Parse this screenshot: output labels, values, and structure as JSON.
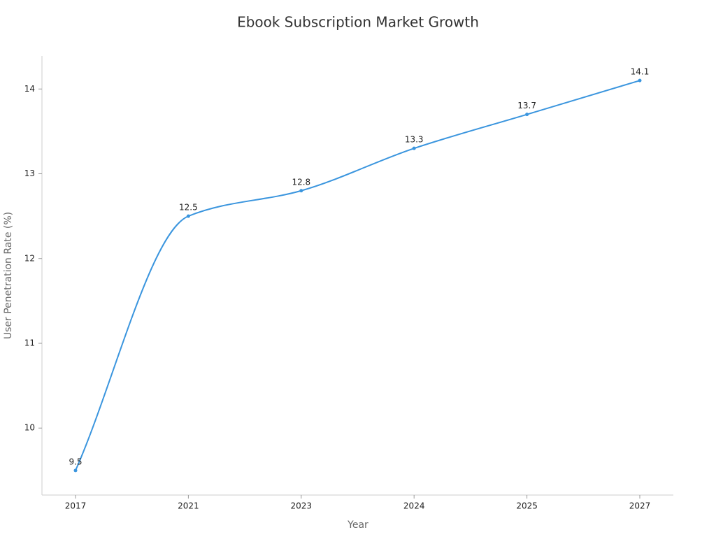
{
  "chart_data": {
    "type": "line",
    "title": "Ebook Subscription Market Growth",
    "x_label": "Year",
    "y_label": "User Penetration Rate (%)",
    "categories": [
      "2017",
      "2021",
      "2023",
      "2024",
      "2025",
      "2027"
    ],
    "series": [
      {
        "name": "User Penetration Rate",
        "color": "#3a95de",
        "values": [
          9.5,
          12.5,
          12.8,
          13.3,
          13.7,
          14.1
        ]
      }
    ],
    "ylim": [
      9.21,
      14.39
    ],
    "yticks": [
      10,
      11,
      12,
      13,
      14
    ],
    "grid": false,
    "smooth": true
  }
}
